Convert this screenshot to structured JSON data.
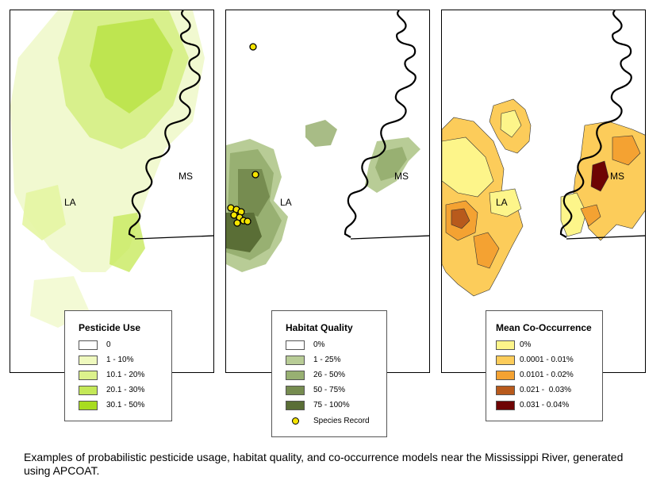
{
  "panels": [
    {
      "id": "pesticide",
      "labels": {
        "la": "LA",
        "ms": "MS"
      },
      "legend": {
        "title": "Pesticide Use",
        "items": [
          {
            "label": "0",
            "color": "#ffffff"
          },
          {
            "label": "1 - 10%",
            "color": "#eff9be"
          },
          {
            "label": "10.1 - 20%",
            "color": "#dcf28c"
          },
          {
            "label": "20.1 - 30%",
            "color": "#c4e858"
          },
          {
            "label": "30.1 - 50%",
            "color": "#a8dc20"
          }
        ]
      }
    },
    {
      "id": "habitat",
      "labels": {
        "la": "LA",
        "ms": "MS"
      },
      "legend": {
        "title": "Habitat Quality",
        "items": [
          {
            "label": "0%",
            "color": "#ffffff"
          },
          {
            "label": "1 - 25%",
            "color": "#b8cc96"
          },
          {
            "label": "26 - 50%",
            "color": "#98b072"
          },
          {
            "label": "50 - 75%",
            "color": "#768c50"
          },
          {
            "label": "75 - 100%",
            "color": "#5a6e36"
          }
        ],
        "record": {
          "label": "Species Record",
          "color": "#f5e400"
        }
      }
    },
    {
      "id": "cooccurrence",
      "labels": {
        "la": "LA",
        "ms": "MS"
      },
      "legend": {
        "title": "Mean Co-Occurrence",
        "items": [
          {
            "label": "0%",
            "color": "#fdf58a"
          },
          {
            "label": "0.0001 - 0.01%",
            "color": "#fccc5a"
          },
          {
            "label": "0.0101 - 0.02%",
            "color": "#f4a232"
          },
          {
            "label": "0.021 -  0.03%",
            "color": "#b85a1c"
          },
          {
            "label": "0.031 - 0.04%",
            "color": "#6e0404"
          }
        ]
      }
    }
  ],
  "caption": "Examples of probabilistic pesticide usage, habitat quality, and co-occurrence models near the Mississippi River, generated using APCOAT."
}
